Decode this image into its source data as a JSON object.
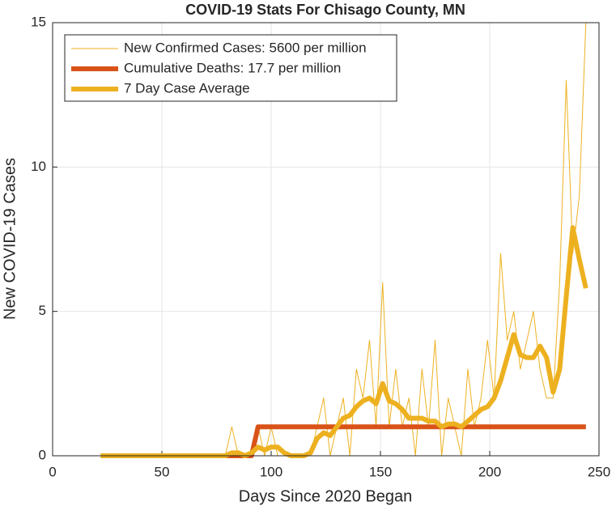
{
  "chart_data": {
    "type": "line",
    "title": "COVID-19 Stats For Chisago County, MN",
    "xlabel": "Days Since 2020 Began",
    "ylabel": "New COVID-19 Cases",
    "x": [
      22,
      25,
      28,
      31,
      34,
      37,
      40,
      43,
      46,
      49,
      52,
      55,
      58,
      61,
      64,
      67,
      70,
      73,
      76,
      79,
      82,
      85,
      88,
      91,
      94,
      97,
      100,
      103,
      106,
      109,
      112,
      115,
      118,
      121,
      124,
      127,
      130,
      133,
      136,
      139,
      142,
      145,
      148,
      151,
      154,
      157,
      160,
      163,
      166,
      169,
      172,
      175,
      178,
      181,
      184,
      187,
      190,
      193,
      196,
      199,
      202,
      205,
      208,
      211,
      214,
      217,
      220,
      223,
      226,
      229,
      232,
      235,
      238,
      241,
      244
    ],
    "series": [
      {
        "name": "New Confirmed Cases: 5600 per million",
        "color": "#EDB120",
        "line_width": 1,
        "values": [
          0,
          0,
          0,
          0,
          0,
          0,
          0,
          0,
          0,
          0,
          0,
          0,
          0,
          0,
          0,
          0,
          0,
          0,
          0,
          0,
          1,
          0,
          0,
          0,
          1,
          0,
          1,
          0,
          0,
          0,
          0,
          0,
          0,
          1,
          2,
          0,
          1,
          2,
          0,
          3,
          2,
          4,
          1,
          6,
          1,
          3,
          1,
          2,
          0,
          3,
          1,
          4,
          0,
          2,
          1,
          0,
          3,
          1,
          2,
          4,
          2,
          7,
          4,
          5,
          3,
          4,
          5,
          3,
          2,
          2,
          6,
          13,
          7,
          9,
          15
        ]
      },
      {
        "name": "Cumulative Deaths: 17.7 per million",
        "color": "#D95319",
        "line_width": 6,
        "values": [
          0,
          0,
          0,
          0,
          0,
          0,
          0,
          0,
          0,
          0,
          0,
          0,
          0,
          0,
          0,
          0,
          0,
          0,
          0,
          0,
          0,
          0,
          0,
          0,
          1,
          1,
          1,
          1,
          1,
          1,
          1,
          1,
          1,
          1,
          1,
          1,
          1,
          1,
          1,
          1,
          1,
          1,
          1,
          1,
          1,
          1,
          1,
          1,
          1,
          1,
          1,
          1,
          1,
          1,
          1,
          1,
          1,
          1,
          1,
          1,
          1,
          1,
          1,
          1,
          1,
          1,
          1,
          1,
          1,
          1,
          1,
          1,
          1,
          1,
          1
        ]
      },
      {
        "name": "7 Day Case Average",
        "color": "#EDB120",
        "line_width": 6,
        "values": [
          0,
          0,
          0,
          0,
          0,
          0,
          0,
          0,
          0,
          0,
          0,
          0,
          0,
          0,
          0,
          0,
          0,
          0,
          0,
          0,
          0.1,
          0.1,
          0,
          0.1,
          0.3,
          0.2,
          0.3,
          0.3,
          0.1,
          0,
          0,
          0,
          0.1,
          0.6,
          0.8,
          0.7,
          1.0,
          1.3,
          1.4,
          1.7,
          1.9,
          2.0,
          1.8,
          2.5,
          1.9,
          1.8,
          1.6,
          1.3,
          1.3,
          1.3,
          1.2,
          1.2,
          1.0,
          1.1,
          1.1,
          1.0,
          1.2,
          1.4,
          1.6,
          1.7,
          2.0,
          2.6,
          3.4,
          4.2,
          3.5,
          3.4,
          3.4,
          3.8,
          3.4,
          2.2,
          3.0,
          5.5,
          7.9,
          6.8,
          5.8
        ]
      }
    ],
    "xlim": [
      0,
      250
    ],
    "xticks": [
      0,
      50,
      100,
      150,
      200,
      250
    ],
    "ylim": [
      0,
      15
    ],
    "yticks": [
      0,
      5,
      10,
      15
    ],
    "grid": true,
    "legend": "upper left"
  }
}
